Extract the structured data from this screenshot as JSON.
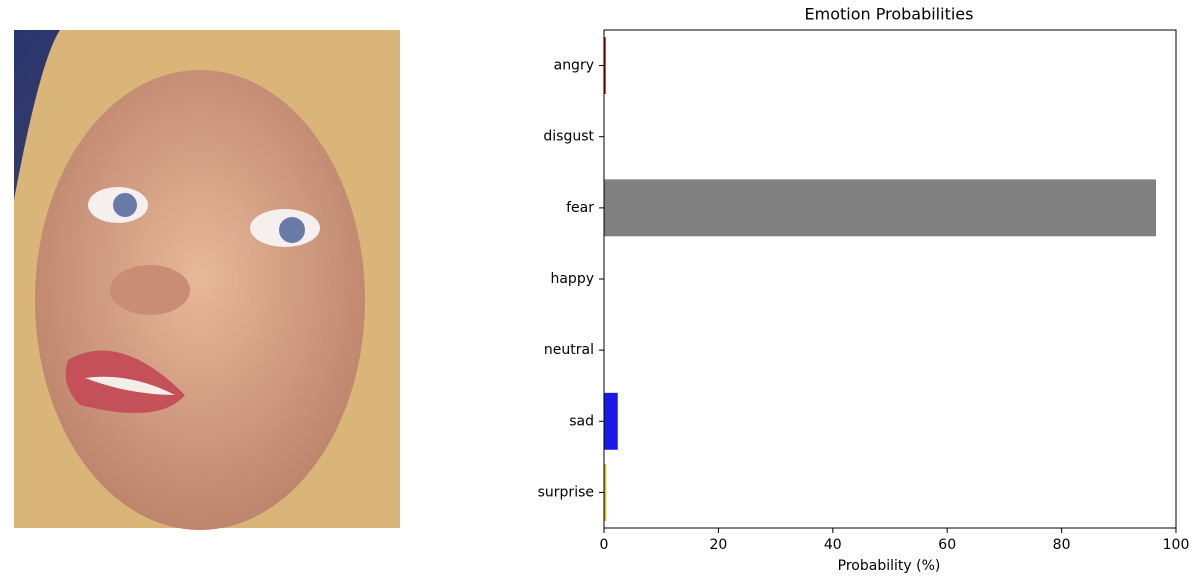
{
  "chart_data": {
    "type": "barh",
    "title": "Emotion Probabilities",
    "x_label": "Probability (%)",
    "categories": [
      "angry",
      "disgust",
      "fear",
      "happy",
      "neutral",
      "sad",
      "surprise"
    ],
    "values": [
      0.3,
      0,
      96.5,
      0,
      0,
      2.4,
      0.4
    ],
    "colors": [
      "#c00000",
      "#008000",
      "#808080",
      "#ffd700",
      "#800080",
      "#1a1ae6",
      "#e6b800"
    ],
    "xlim": [
      0,
      100
    ],
    "xticks": [
      0,
      20,
      40,
      60,
      80,
      100
    ]
  }
}
